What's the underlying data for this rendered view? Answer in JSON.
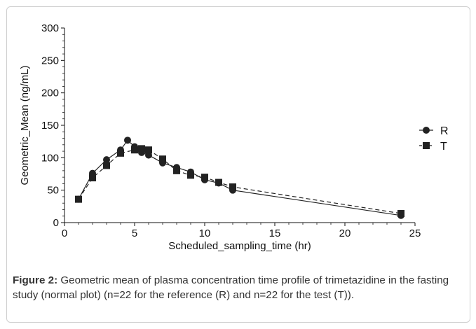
{
  "caption": {
    "label": "Figure 2:",
    "text": " Geometric mean of plasma concentration time profile of trimetazidine in the fasting study (normal plot) (n=22 for the reference (R) and n=22 for the test (T)).",
    "end": "."
  },
  "chart_data": {
    "type": "line",
    "title": "",
    "xlabel": "Scheduled_sampling_time (hr)",
    "ylabel": "Geometric_Mean (ng/mL)",
    "xlim": [
      0,
      25
    ],
    "ylim": [
      0,
      300
    ],
    "xticks": [
      0,
      5,
      10,
      15,
      20,
      25
    ],
    "yticks": [
      0,
      50,
      100,
      150,
      200,
      250,
      300
    ],
    "grid": false,
    "legend_position": "right",
    "series": [
      {
        "name": "R",
        "marker": "circle",
        "line": "solid",
        "color": "#222222",
        "x": [
          1,
          2,
          3,
          4,
          4.5,
          5,
          5.5,
          6,
          7,
          8,
          9,
          10,
          11,
          12,
          24
        ],
        "y": [
          36,
          76,
          97,
          112,
          127,
          117,
          108,
          104,
          92,
          85,
          78,
          66,
          61,
          50,
          11
        ]
      },
      {
        "name": "T",
        "marker": "square",
        "line": "dashed",
        "color": "#222222",
        "x": [
          1,
          2,
          3,
          4,
          5,
          5.5,
          6,
          7,
          8,
          9,
          10,
          11,
          12,
          24
        ],
        "y": [
          36,
          69,
          88,
          107,
          112,
          114,
          112,
          98,
          80,
          73,
          70,
          62,
          55,
          14
        ]
      }
    ]
  }
}
